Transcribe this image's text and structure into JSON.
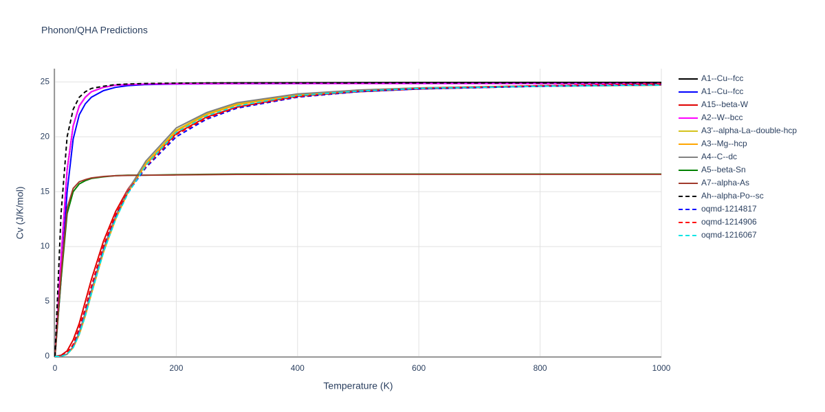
{
  "chart_data": {
    "type": "line",
    "title": "Phonon/QHA Predictions",
    "x_label": "Temperature (K)",
    "y_label": "Cv (J/K/mol)",
    "x": [
      0,
      10,
      20,
      30,
      40,
      50,
      60,
      80,
      100,
      120,
      150,
      200,
      250,
      300,
      400,
      500,
      600,
      800,
      1000
    ],
    "xlim": [
      0,
      1000
    ],
    "xticks": [
      0,
      200,
      400,
      600,
      800,
      1000
    ],
    "ylim": [
      0,
      26.2
    ],
    "yticks": [
      0,
      5,
      10,
      15,
      20,
      25
    ],
    "grid": true,
    "legend": "right",
    "series": [
      {
        "name": "A1--Cu--fcc",
        "color": "#000000",
        "dash": false,
        "values": [
          0,
          9,
          17,
          21,
          22.8,
          23.6,
          24.1,
          24.5,
          24.7,
          24.75,
          24.8,
          24.85,
          24.88,
          24.9,
          24.92,
          24.93,
          24.94,
          24.95,
          24.95
        ]
      },
      {
        "name": "A1--Cu--fcc",
        "color": "#0000ff",
        "dash": false,
        "values": [
          0,
          7,
          15,
          19.8,
          22,
          23,
          23.6,
          24.2,
          24.5,
          24.65,
          24.75,
          24.8,
          24.82,
          24.83,
          24.84,
          24.85,
          24.85,
          24.85,
          24.85
        ]
      },
      {
        "name": "A15--beta-W",
        "color": "#e00000",
        "dash": false,
        "values": [
          0,
          0.1,
          0.5,
          1.5,
          3,
          5,
          7,
          10.5,
          13.2,
          15.2,
          17.5,
          20.3,
          21.8,
          22.7,
          23.7,
          24.1,
          24.35,
          24.6,
          24.7
        ]
      },
      {
        "name": "A2--W--bcc",
        "color": "#ff00ff",
        "dash": false,
        "values": [
          0,
          9,
          17,
          21,
          22.8,
          23.6,
          24.1,
          24.5,
          24.7,
          24.75,
          24.8,
          24.82,
          24.83,
          24.84,
          24.85,
          24.85,
          24.85,
          24.85,
          24.85
        ]
      },
      {
        "name": "A3'--alpha-La--double-hcp",
        "color": "#d4c21c",
        "dash": false,
        "values": [
          0,
          0,
          0.2,
          0.8,
          2,
          3.7,
          5.7,
          9.5,
          12.5,
          14.9,
          17.6,
          20.6,
          22.1,
          23,
          23.85,
          24.25,
          24.45,
          24.65,
          24.75
        ]
      },
      {
        "name": "A3--Mg--hcp",
        "color": "#ffa500",
        "dash": false,
        "values": [
          0,
          0,
          0.2,
          0.8,
          2,
          3.7,
          5.7,
          9.5,
          12.5,
          14.9,
          17.5,
          20.5,
          22,
          22.9,
          23.8,
          24.2,
          24.4,
          24.6,
          24.7
        ]
      },
      {
        "name": "A4--C--dc",
        "color": "#808080",
        "dash": false,
        "values": [
          0,
          0,
          0.2,
          0.9,
          2.2,
          4,
          6,
          9.8,
          12.8,
          15.1,
          17.8,
          20.8,
          22.2,
          23.1,
          23.9,
          24.25,
          24.45,
          24.65,
          24.75
        ]
      },
      {
        "name": "A5--beta-Sn",
        "color": "#008000",
        "dash": false,
        "values": [
          0,
          7,
          13,
          15,
          15.7,
          16,
          16.2,
          16.35,
          16.45,
          16.5,
          16.5,
          16.55,
          16.58,
          16.6,
          16.6,
          16.6,
          16.6,
          16.6,
          16.6
        ]
      },
      {
        "name": "A7--alpha-As",
        "color": "#a0392b",
        "dash": false,
        "values": [
          0,
          7.5,
          13.5,
          15.3,
          15.9,
          16.1,
          16.25,
          16.38,
          16.45,
          16.48,
          16.5,
          16.52,
          16.55,
          16.57,
          16.58,
          16.58,
          16.58,
          16.58,
          16.58
        ]
      },
      {
        "name": "Ah--alpha-Po--sc",
        "color": "#000000",
        "dash": true,
        "values": [
          0,
          13,
          20,
          22.5,
          23.6,
          24.1,
          24.4,
          24.6,
          24.75,
          24.8,
          24.85,
          24.88,
          24.9,
          24.9,
          24.9,
          24.9,
          24.9,
          24.9,
          24.9
        ]
      },
      {
        "name": "oqmd-1214817",
        "color": "#0000ff",
        "dash": true,
        "values": [
          0,
          0,
          0.3,
          1,
          2.5,
          4.3,
          6.3,
          10,
          12.8,
          14.9,
          17.2,
          20,
          21.6,
          22.6,
          23.6,
          24.1,
          24.35,
          24.6,
          24.75
        ]
      },
      {
        "name": "oqmd-1214906",
        "color": "#ff0000",
        "dash": true,
        "values": [
          0,
          0,
          0.3,
          1.1,
          2.6,
          4.4,
          6.4,
          10.1,
          12.9,
          15,
          17.3,
          20.2,
          21.7,
          22.7,
          23.65,
          24.15,
          24.4,
          24.65,
          24.8
        ]
      },
      {
        "name": "oqmd-1216067",
        "color": "#00e5e5",
        "dash": true,
        "values": [
          0,
          0,
          0.2,
          0.8,
          2,
          3.7,
          5.7,
          9.5,
          12.5,
          14.8,
          17.4,
          20.4,
          21.9,
          22.8,
          23.75,
          24.15,
          24.4,
          24.6,
          24.7
        ]
      }
    ]
  }
}
